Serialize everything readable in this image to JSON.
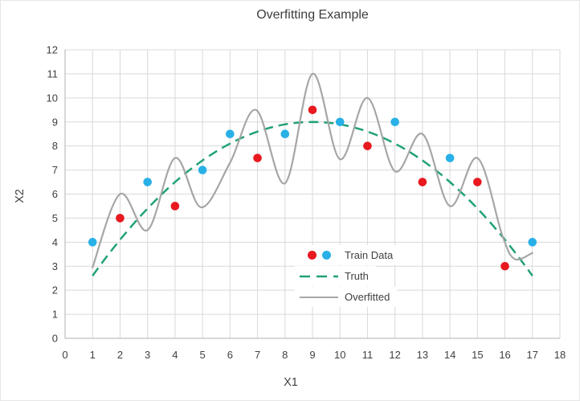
{
  "colors": {
    "red": "#e8191f",
    "blue": "#29b0e6",
    "green": "#21a179",
    "gray": "#a6a6a6",
    "grid": "#d9d9d9",
    "axis": "#bfbfbf",
    "text": "#404040"
  },
  "chart_data": {
    "type": "scatter",
    "title": "Overfitting Example",
    "xlabel": "X1",
    "ylabel": "X2",
    "xlim": [
      0,
      18
    ],
    "ylim": [
      0,
      12
    ],
    "x_ticks": [
      0,
      1,
      2,
      3,
      4,
      5,
      6,
      7,
      8,
      9,
      10,
      11,
      12,
      13,
      14,
      15,
      16,
      17,
      18
    ],
    "y_ticks": [
      0,
      1,
      2,
      3,
      4,
      5,
      6,
      7,
      8,
      9,
      10,
      11,
      12
    ],
    "grid": true,
    "legend": {
      "position": "inside-bottom-center",
      "entries": [
        {
          "label": "Train Data",
          "marker": "dots",
          "colors": [
            "red",
            "blue"
          ]
        },
        {
          "label": "Truth",
          "marker": "dashed-line",
          "color": "green"
        },
        {
          "label": "Overfitted",
          "marker": "solid-line",
          "color": "gray"
        }
      ]
    },
    "series": [
      {
        "name": "Train Data",
        "type": "scatter",
        "points": [
          {
            "x": 1,
            "y": 4,
            "color": "blue"
          },
          {
            "x": 2,
            "y": 5,
            "color": "red"
          },
          {
            "x": 3,
            "y": 6.5,
            "color": "blue"
          },
          {
            "x": 4,
            "y": 5.5,
            "color": "red"
          },
          {
            "x": 5,
            "y": 7,
            "color": "blue"
          },
          {
            "x": 6,
            "y": 8.5,
            "color": "blue"
          },
          {
            "x": 7,
            "y": 7.5,
            "color": "red"
          },
          {
            "x": 8,
            "y": 8.5,
            "color": "blue"
          },
          {
            "x": 9,
            "y": 9.5,
            "color": "red"
          },
          {
            "x": 10,
            "y": 9,
            "color": "blue"
          },
          {
            "x": 11,
            "y": 8,
            "color": "red"
          },
          {
            "x": 12,
            "y": 9,
            "color": "blue"
          },
          {
            "x": 13,
            "y": 6.5,
            "color": "red"
          },
          {
            "x": 14,
            "y": 7.5,
            "color": "blue"
          },
          {
            "x": 15,
            "y": 6.5,
            "color": "red"
          },
          {
            "x": 16,
            "y": 3,
            "color": "red"
          },
          {
            "x": 17,
            "y": 4,
            "color": "blue"
          }
        ]
      },
      {
        "name": "Truth",
        "type": "line",
        "style": "dashed",
        "color": "green",
        "peak": {
          "x": 9,
          "y": 9
        },
        "coeff": -0.1,
        "x_range": [
          1,
          17
        ]
      },
      {
        "name": "Overfitted",
        "type": "line",
        "style": "solid",
        "color": "gray",
        "points": [
          [
            1,
            2.95
          ],
          [
            2,
            6
          ],
          [
            3,
            4.5
          ],
          [
            4,
            7.5
          ],
          [
            4.95,
            5.45
          ],
          [
            6,
            7.3
          ],
          [
            6.95,
            9.5
          ],
          [
            8,
            6.45
          ],
          [
            9,
            11
          ],
          [
            10,
            7.45
          ],
          [
            11,
            10
          ],
          [
            12,
            6.95
          ],
          [
            13,
            8.5
          ],
          [
            14,
            5.5
          ],
          [
            15,
            7.5
          ],
          [
            15.9,
            4.3
          ],
          [
            16.35,
            3.3
          ],
          [
            17,
            3.55
          ]
        ]
      }
    ]
  }
}
